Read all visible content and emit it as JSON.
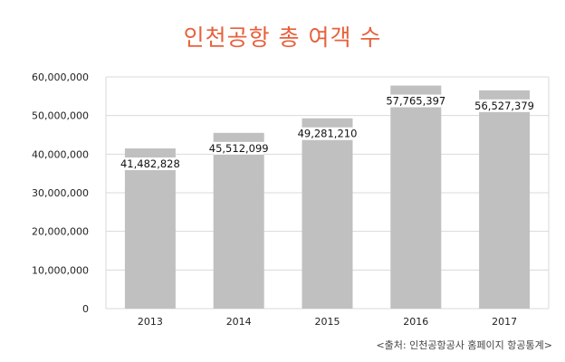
{
  "chart_data": {
    "type": "bar",
    "title": "인천공항 총 여객 수",
    "categories": [
      "2013",
      "2014",
      "2015",
      "2016",
      "2017"
    ],
    "values": [
      41482828,
      45512099,
      49281210,
      57765397,
      56527379
    ],
    "data_labels": [
      "41,482,828",
      "45,512,099",
      "49,281,210",
      "57,765,397",
      "56,527,379"
    ],
    "ylim": [
      0,
      60000000
    ],
    "y_ticks": [
      0,
      10000000,
      20000000,
      30000000,
      40000000,
      50000000,
      60000000
    ],
    "y_tick_labels": [
      "0",
      "10,000,000",
      "20,000,000",
      "30,000,000",
      "40,000,000",
      "50,000,000",
      "60,000,000"
    ],
    "grid": true,
    "bar_color": "#c0c0c0",
    "grid_color": "#d9d9d9",
    "title_color": "#e8603c"
  },
  "source": "<출처: 인천공항공사 홈페이지 항공통계>"
}
